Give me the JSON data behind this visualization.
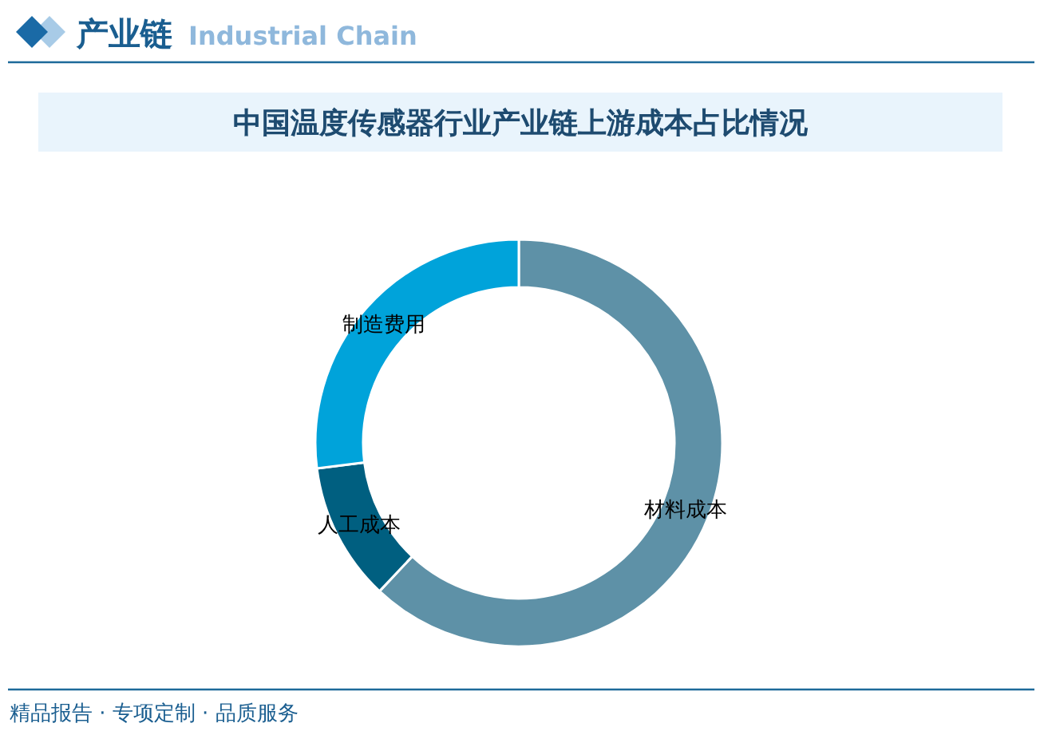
{
  "chart_data": {
    "type": "donut",
    "title": "中国温度传感器行业产业链上游成本占比情况",
    "categories": [
      "材料成本",
      "人工成本",
      "制造费用"
    ],
    "values": [
      62,
      11,
      27
    ],
    "colors": [
      "#5e91a7",
      "#005f80",
      "#00a3da"
    ],
    "annotations": [
      "产业链",
      "Industrial Chain",
      "精品报告 · 专项定制 · 品质服务"
    ]
  }
}
